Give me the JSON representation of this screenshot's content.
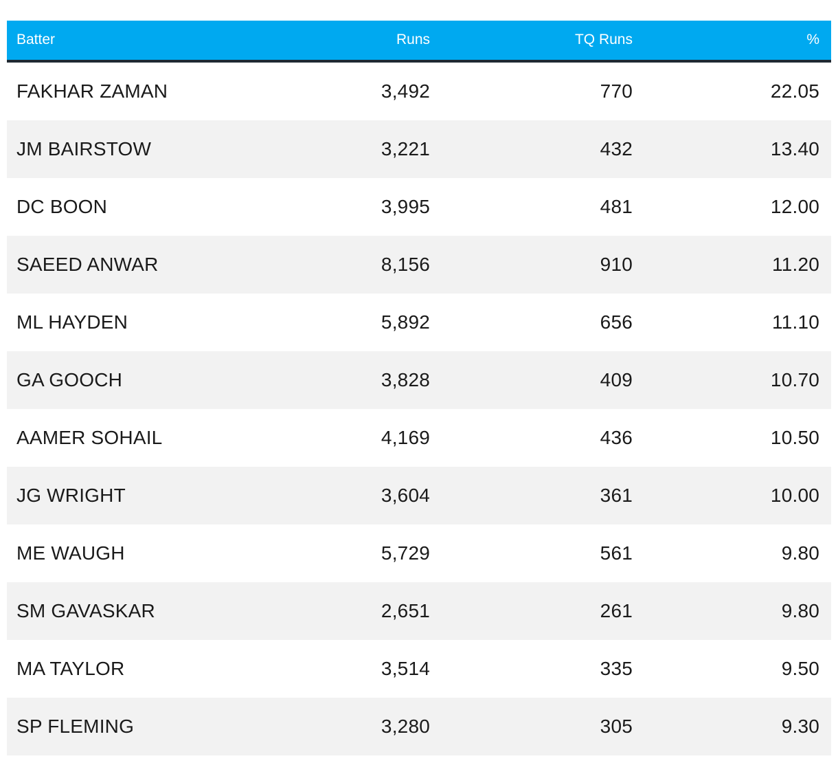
{
  "table": {
    "headers": {
      "batter": "Batter",
      "runs": "Runs",
      "tq_runs": "TQ Runs",
      "pct": "%"
    },
    "rows": [
      {
        "batter": "FAKHAR ZAMAN",
        "runs": "3,492",
        "tq_runs": "770",
        "pct": "22.05"
      },
      {
        "batter": "JM BAIRSTOW",
        "runs": "3,221",
        "tq_runs": "432",
        "pct": "13.40"
      },
      {
        "batter": "DC BOON",
        "runs": "3,995",
        "tq_runs": "481",
        "pct": "12.00"
      },
      {
        "batter": "SAEED ANWAR",
        "runs": "8,156",
        "tq_runs": "910",
        "pct": "11.20"
      },
      {
        "batter": "ML HAYDEN",
        "runs": "5,892",
        "tq_runs": "656",
        "pct": "11.10"
      },
      {
        "batter": "GA GOOCH",
        "runs": "3,828",
        "tq_runs": "409",
        "pct": "10.70"
      },
      {
        "batter": "AAMER SOHAIL",
        "runs": "4,169",
        "tq_runs": "436",
        "pct": "10.50"
      },
      {
        "batter": "JG WRIGHT",
        "runs": "3,604",
        "tq_runs": "361",
        "pct": "10.00"
      },
      {
        "batter": "ME WAUGH",
        "runs": "5,729",
        "tq_runs": "561",
        "pct": "9.80"
      },
      {
        "batter": "SM GAVASKAR",
        "runs": "2,651",
        "tq_runs": "261",
        "pct": "9.80"
      },
      {
        "batter": "MA TAYLOR",
        "runs": "3,514",
        "tq_runs": "335",
        "pct": "9.50"
      },
      {
        "batter": "SP FLEMING",
        "runs": "3,280",
        "tq_runs": "305",
        "pct": "9.30"
      }
    ]
  },
  "colors": {
    "header_bg": "#00a9f0",
    "header_text": "#ffffff",
    "header_rule": "#1f2a33",
    "alt_row_bg": "#f2f2f2"
  }
}
